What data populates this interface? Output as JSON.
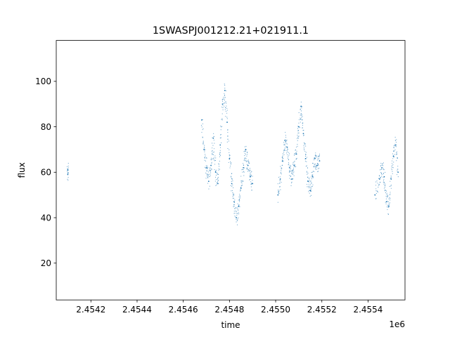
{
  "chart_data": {
    "type": "scatter",
    "title": "1SWASPJ001212.21+021911.1",
    "xlabel": "time",
    "ylabel": "flux",
    "x_offset_label": "1e6",
    "xlim": [
      2.45405,
      2.45556
    ],
    "ylim": [
      3.8,
      118
    ],
    "xticks": [
      2.4542,
      2.4544,
      2.4546,
      2.4548,
      2.455,
      2.4552,
      2.4554
    ],
    "xtick_labels": [
      "2.4542",
      "2.4544",
      "2.4546",
      "2.4548",
      "2.4550",
      "2.4552",
      "2.4554"
    ],
    "yticks": [
      20,
      40,
      60,
      80,
      100
    ],
    "ytick_labels": [
      "20",
      "40",
      "60",
      "80",
      "100"
    ],
    "grid": false,
    "marker_color": "#1f77b4",
    "series": [
      {
        "segments": [
          {
            "x": [
              2.4541,
              2.4541
            ],
            "y": [
              59.0,
              61.0
            ]
          },
          {
            "x": [
              2.45468,
              2.45469,
              2.4547,
              2.45471,
              2.45472,
              2.45473,
              2.45474,
              2.45475,
              2.45476,
              2.45477,
              2.45478,
              2.45479,
              2.4548,
              2.45481,
              2.45482,
              2.45483,
              2.45484,
              2.45485,
              2.45486,
              2.45487,
              2.45488,
              2.45489,
              2.4549
            ],
            "y": [
              83,
              70,
              62,
              56,
              63,
              75,
              60,
              55,
              72,
              90,
              96,
              82,
              66,
              55,
              47,
              40,
              45,
              53,
              62,
              70,
              63,
              58,
              55
            ]
          },
          {
            "x": [
              2.45501,
              2.45502,
              2.45503,
              2.45504,
              2.45505,
              2.45506,
              2.45507,
              2.45508,
              2.45509,
              2.4551,
              2.45511,
              2.45512,
              2.45513,
              2.45514,
              2.45515,
              2.45516,
              2.45517,
              2.45518,
              2.45519
            ],
            "y": [
              50,
              57,
              65,
              74,
              71,
              62,
              57,
              63,
              68,
              80,
              89,
              77,
              66,
              56,
              52,
              58,
              66,
              63,
              65
            ]
          },
          {
            "x": [
              2.45543,
              2.45545,
              2.45546,
              2.45547,
              2.45548,
              2.45549,
              2.4555,
              2.45551,
              2.45552,
              2.45553
            ],
            "y": [
              50,
              57,
              62,
              58,
              47,
              45,
              57,
              67,
              72,
              60
            ]
          }
        ]
      }
    ]
  }
}
